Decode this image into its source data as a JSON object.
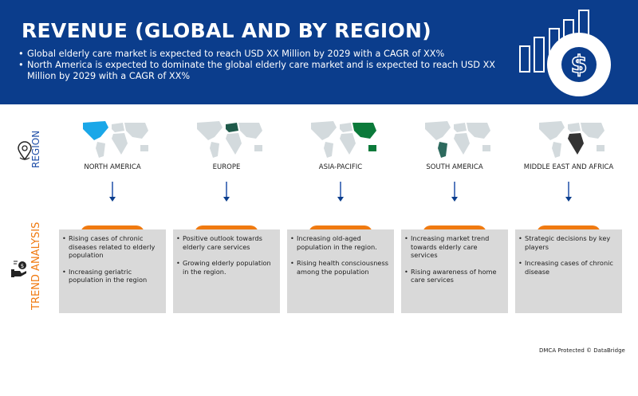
{
  "header": {
    "title": "REVENUE (GLOBAL AND BY REGION)",
    "bullets": [
      "Global elderly care market is expected to reach USD XX Million by 2029 with a CAGR of XX%",
      "North America is expected to dominate the global elderly care market and is expected to reach USD XX Million by 2029 with a CAGR of XX%"
    ],
    "icon": "revenue-growth-dollar-icon"
  },
  "side": {
    "region_label": "REGION",
    "trend_label": "TREND ANALYSIS",
    "region_color": "#1f4fa8",
    "trend_color": "#f07a10"
  },
  "regions": [
    {
      "name": "NORTH AMERICA",
      "highlight": "#1aa7e8",
      "trends": [
        "Rising cases of chronic diseases related to elderly population",
        "Increasing geriatric population in the region"
      ]
    },
    {
      "name": "EUROPE",
      "highlight": "#1f5a4a",
      "trends": [
        "Positive outlook towards elderly care services",
        "Growing elderly population in the region."
      ]
    },
    {
      "name": "ASIA-PACIFIC",
      "highlight": "#0b7a3a",
      "trends": [
        "Increasing old-aged population in the region.",
        "Rising health consciousness among the population"
      ]
    },
    {
      "name": "SOUTH AMERICA",
      "highlight": "#2d6a5e",
      "trends": [
        "Increasing market trend towards elderly care services",
        "Rising awareness of home care services"
      ]
    },
    {
      "name": "MIDDLE EAST AND AFRICA",
      "highlight": "#333333",
      "trends": [
        "Strategic decisions by key players",
        "Increasing cases of chronic disease"
      ]
    }
  ],
  "footer": {
    "dmca": "DMCA Protected © DataBridge"
  }
}
